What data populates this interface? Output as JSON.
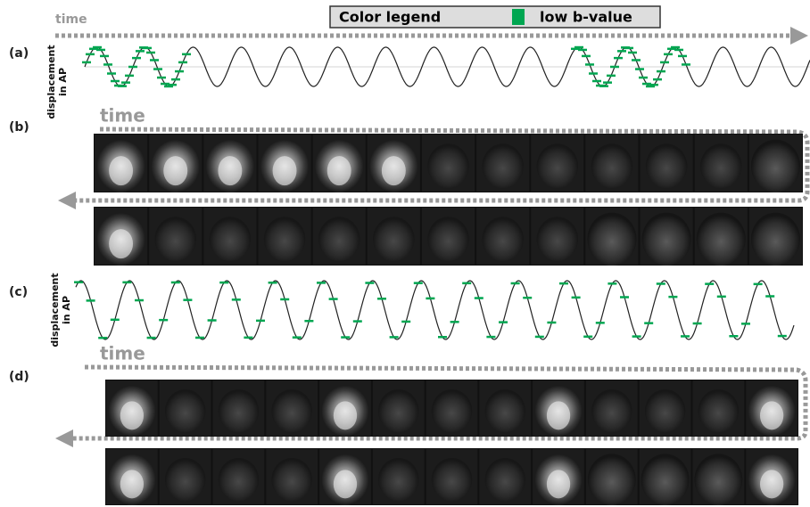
{
  "legend": {
    "title": "Color legend",
    "items": [
      "low b-value"
    ]
  },
  "panels": [
    {
      "label": "(a)",
      "y_label": [
        "displacement",
        "in AP"
      ],
      "time_label": "time"
    },
    {
      "label": "(b)",
      "time_label": "time"
    },
    {
      "label": "(c)",
      "y_label": [
        "displacement",
        "in AP"
      ]
    },
    {
      "label": "(d)",
      "time_label": "time"
    }
  ]
}
